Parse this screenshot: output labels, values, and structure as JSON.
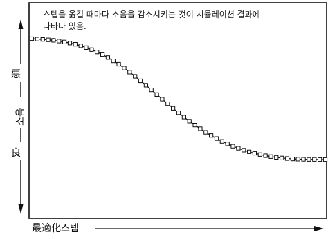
{
  "chart_data": {
    "type": "line",
    "annotation": [
      "스텝을 옮길 때마다 소음을 감소시키는 것이 시뮬레이션 결과에",
      "나타나 있음."
    ],
    "xlabel": "最適化스텝",
    "ylabel": "소음",
    "y_top_label": "悪",
    "y_bottom_label": "良",
    "ylim": [
      0,
      1
    ],
    "grid": false,
    "x": [
      1,
      2,
      3,
      4,
      5,
      6,
      7,
      8,
      9,
      10,
      11,
      12,
      13,
      14,
      15,
      16,
      17,
      18,
      19,
      20,
      21,
      22,
      23,
      24,
      25,
      26,
      27,
      28,
      29,
      30,
      31,
      32,
      33,
      34,
      35,
      36,
      37,
      38,
      39,
      40,
      41,
      42,
      43,
      44,
      45,
      46,
      47,
      48,
      49,
      50,
      51,
      52,
      53,
      54,
      55
    ],
    "values": [
      0.985,
      0.982,
      0.979,
      0.976,
      0.972,
      0.966,
      0.959,
      0.951,
      0.941,
      0.929,
      0.915,
      0.899,
      0.881,
      0.86,
      0.837,
      0.811,
      0.784,
      0.754,
      0.722,
      0.689,
      0.654,
      0.619,
      0.583,
      0.546,
      0.51,
      0.474,
      0.438,
      0.403,
      0.369,
      0.337,
      0.306,
      0.277,
      0.249,
      0.224,
      0.2,
      0.178,
      0.158,
      0.14,
      0.124,
      0.109,
      0.096,
      0.084,
      0.074,
      0.065,
      0.058,
      0.052,
      0.047,
      0.043,
      0.04,
      0.038,
      0.037,
      0.036,
      0.036,
      0.035,
      0.035
    ]
  }
}
